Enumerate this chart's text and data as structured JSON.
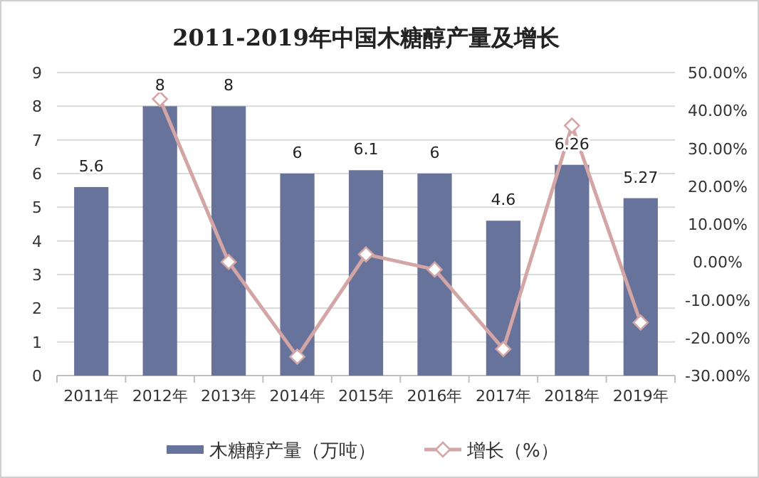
{
  "chart_data": {
    "type": "bar",
    "title": "2011-2019年中国木糖醇产量及增长",
    "categories": [
      "2011年",
      "2012年",
      "2013年",
      "2014年",
      "2015年",
      "2016年",
      "2017年",
      "2018年",
      "2019年"
    ],
    "series": [
      {
        "name": "木糖醇产量（万吨）",
        "color": "#67739b",
        "values": [
          5.6,
          8,
          8,
          6,
          6.1,
          6,
          4.6,
          6.26,
          5.27
        ],
        "value_labels": [
          "5.6",
          "8",
          "8",
          "6",
          "6.1",
          "6",
          "4.6",
          "6.26",
          "5.27"
        ]
      },
      {
        "name": "增长（%）",
        "type": "line",
        "axis": "y2",
        "color": "#d4a5a5",
        "marker": "diamond",
        "values": [
          null,
          43,
          0,
          -25,
          2,
          -2,
          -23,
          36,
          -16
        ]
      }
    ],
    "ylim": [
      0,
      9
    ],
    "yticks": [
      0,
      1,
      2,
      3,
      4,
      5,
      6,
      7,
      8,
      9
    ],
    "y2lim": [
      -30,
      50
    ],
    "y2ticks": [
      {
        "value": -30,
        "label": "-30.00%"
      },
      {
        "value": -20,
        "label": "-20.00%"
      },
      {
        "value": -10,
        "label": "-10.00%"
      },
      {
        "value": 0,
        "label": "0.00%"
      },
      {
        "value": 10,
        "label": "10.00%"
      },
      {
        "value": 20,
        "label": "20.00%"
      },
      {
        "value": 30,
        "label": "30.00%"
      },
      {
        "value": 40,
        "label": "40.00%"
      },
      {
        "value": 50,
        "label": "50.00%"
      }
    ],
    "grid": "y",
    "legend": "bottom"
  }
}
